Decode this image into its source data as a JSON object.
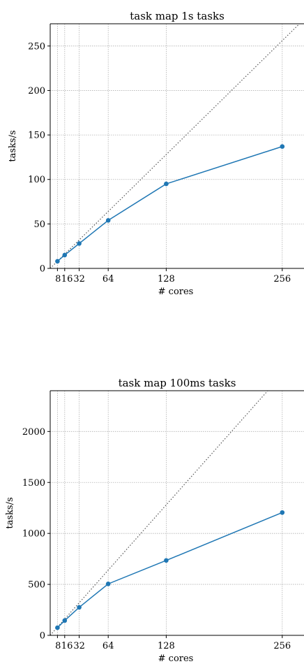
{
  "colors": {
    "series": "#1f77b4",
    "ideal": "#555555"
  },
  "chart_data": [
    {
      "type": "line",
      "title": "task map 1s tasks",
      "xlabel": "# cores",
      "ylabel": "tasks/s",
      "x": [
        8,
        16,
        32,
        64,
        128,
        256
      ],
      "xticks": [
        8,
        16,
        32,
        64,
        128,
        256
      ],
      "xticklabels": [
        "8",
        "16",
        "32",
        "64",
        "128",
        "256"
      ],
      "yticks": [
        0,
        50,
        100,
        150,
        200,
        250
      ],
      "yticklabels": [
        "0",
        "50",
        "100",
        "150",
        "200",
        "250"
      ],
      "xlim": [
        0,
        280
      ],
      "ylim": [
        0,
        275
      ],
      "grid": true,
      "series": [
        {
          "values": [
            8,
            15,
            28,
            54,
            95,
            137
          ],
          "style": "solid",
          "marker": "circle"
        }
      ],
      "ideal_line": {
        "slope": 1.0,
        "style": "dotted"
      }
    },
    {
      "type": "line",
      "title": "task map 100ms tasks",
      "xlabel": "# cores",
      "ylabel": "tasks/s",
      "x": [
        8,
        16,
        32,
        64,
        128,
        256
      ],
      "xticks": [
        8,
        16,
        32,
        64,
        128,
        256
      ],
      "xticklabels": [
        "8",
        "16",
        "32",
        "64",
        "128",
        "256"
      ],
      "yticks": [
        0,
        500,
        1000,
        1500,
        2000
      ],
      "yticklabels": [
        "0",
        "500",
        "1000",
        "1500",
        "2000"
      ],
      "xlim": [
        0,
        280
      ],
      "ylim": [
        0,
        2400
      ],
      "grid": true,
      "series": [
        {
          "values": [
            75,
            145,
            275,
            505,
            735,
            1205
          ],
          "style": "solid",
          "marker": "circle"
        }
      ],
      "ideal_line": {
        "slope": 10.0,
        "style": "dotted"
      }
    }
  ]
}
